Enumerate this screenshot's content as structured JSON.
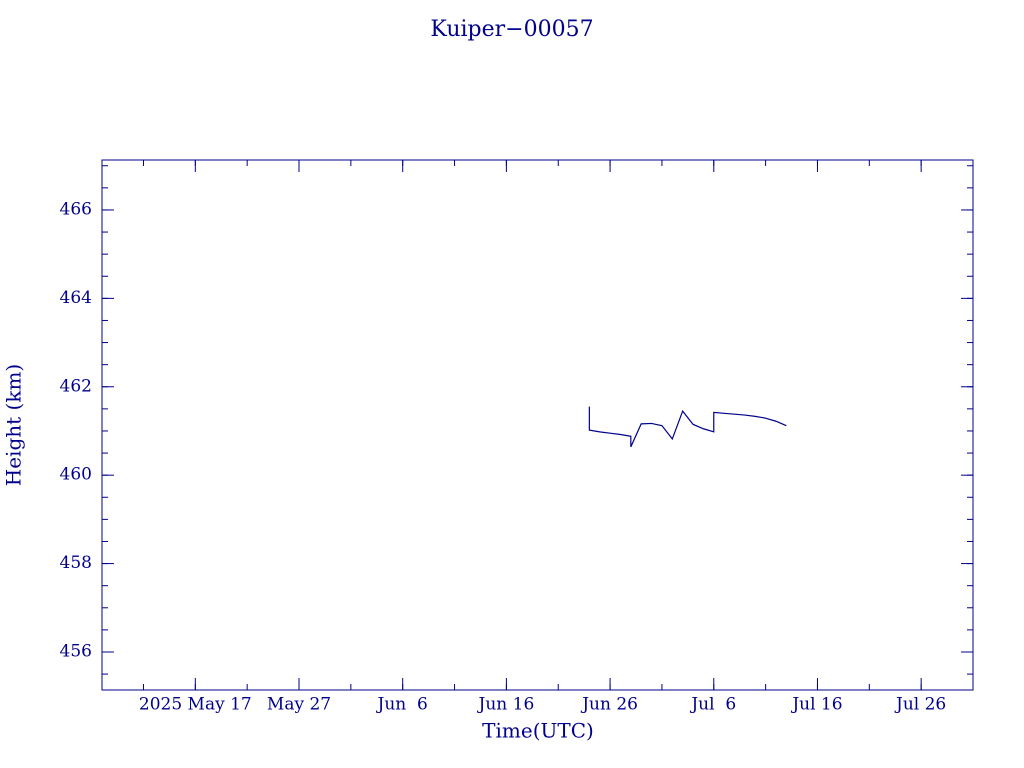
{
  "chart_data": {
    "type": "line",
    "title": "Kuiper−00057",
    "x_label": "Time(UTC)",
    "y_label": "Height (km)",
    "x": [
      "2025-06-24",
      "2025-06-24",
      "2025-06-25",
      "2025-06-26",
      "2025-06-27",
      "2025-06-28",
      "2025-06-28",
      "2025-06-29",
      "2025-06-30",
      "2025-07-01",
      "2025-07-02",
      "2025-07-03",
      "2025-07-04",
      "2025-07-05",
      "2025-07-06",
      "2025-07-06",
      "2025-07-07",
      "2025-07-08",
      "2025-07-09",
      "2025-07-10",
      "2025-07-11",
      "2025-07-12",
      "2025-07-13"
    ],
    "series": [
      {
        "name": "Kuiper−00057",
        "color": "#00008b",
        "values": [
          461.55,
          461.02,
          460.98,
          460.95,
          460.92,
          460.88,
          460.64,
          461.16,
          461.17,
          461.12,
          460.82,
          461.45,
          461.15,
          461.05,
          460.98,
          461.42,
          461.4,
          461.38,
          461.36,
          461.33,
          461.29,
          461.22,
          461.12
        ]
      }
    ],
    "xlim": [
      "2025-05-08",
      "2025-07-31"
    ],
    "xticks": [
      {
        "value": "2025-05-17",
        "label": "2025 May 17"
      },
      {
        "value": "2025-05-27",
        "label": "May 27"
      },
      {
        "value": "2025-06-06",
        "label": "Jun  6"
      },
      {
        "value": "2025-06-16",
        "label": "Jun 16"
      },
      {
        "value": "2025-06-26",
        "label": "Jun 26"
      },
      {
        "value": "2025-07-06",
        "label": "Jul  6"
      },
      {
        "value": "2025-07-16",
        "label": "Jul 16"
      },
      {
        "value": "2025-07-26",
        "label": "Jul 26"
      }
    ],
    "ylim": [
      455.14,
      467.13
    ],
    "yticks": [
      456,
      458,
      460,
      462,
      464,
      466
    ],
    "grid": false
  }
}
